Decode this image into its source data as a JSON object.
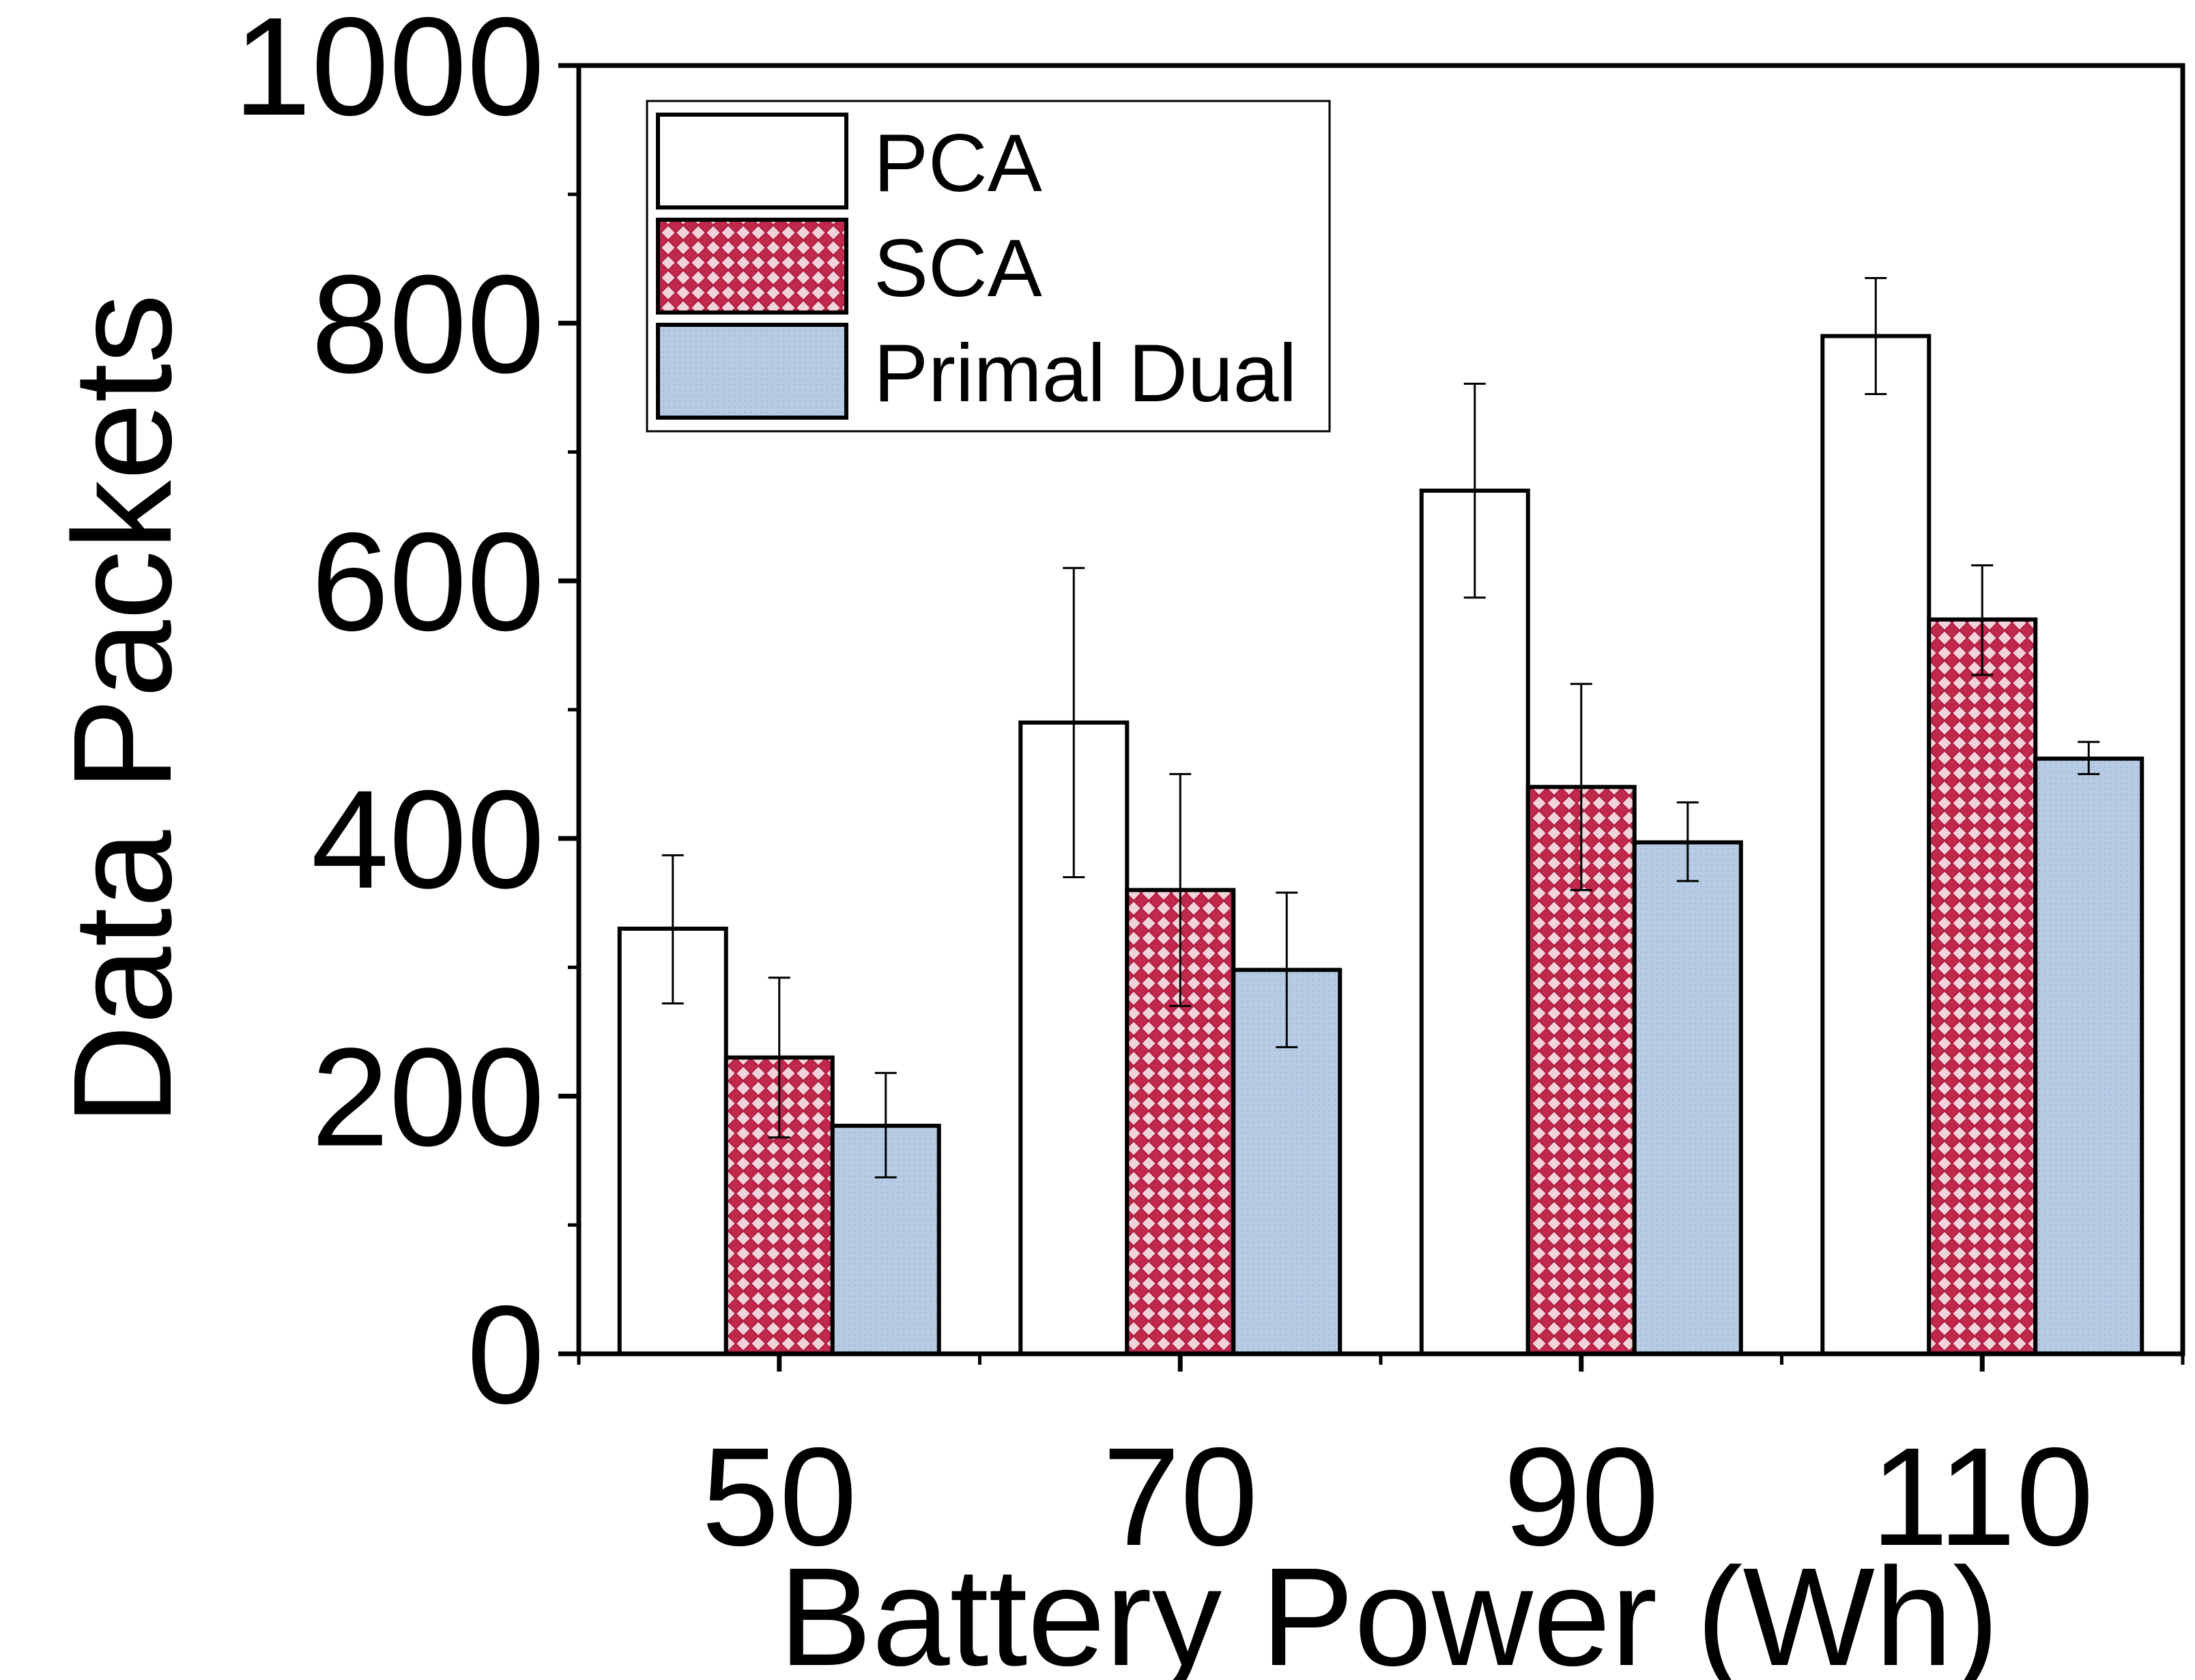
{
  "chart_data": {
    "type": "bar",
    "title": "",
    "xlabel": "Battery Power (Wh)",
    "ylabel": "Data Packets",
    "categories": [
      "50",
      "70",
      "90",
      "110"
    ],
    "ylim": [
      0,
      1000
    ],
    "yticks": [
      "0",
      "200",
      "400",
      "600",
      "800",
      "1000"
    ],
    "grid": false,
    "legend_position": "top-left",
    "series": [
      {
        "name": "PCA",
        "values": [
          330,
          490,
          670,
          790
        ],
        "error": [
          [
            272,
            387
          ],
          [
            370,
            610
          ],
          [
            587,
            753
          ],
          [
            745,
            835
          ]
        ],
        "color": "#ffffff",
        "pattern": "solid"
      },
      {
        "name": "SCA",
        "values": [
          230,
          360,
          440,
          570
        ],
        "error": [
          [
            168,
            292
          ],
          [
            270,
            450
          ],
          [
            360,
            520
          ],
          [
            527,
            612
          ]
        ],
        "color": "#c0284c",
        "pattern": "crosshatch"
      },
      {
        "name": "Primal Dual",
        "values": [
          177,
          298,
          397,
          462
        ],
        "error": [
          [
            137,
            218
          ],
          [
            238,
            358
          ],
          [
            367,
            428
          ],
          [
            450,
            475
          ]
        ],
        "color": "#b7cce4",
        "pattern": "fine-dots"
      }
    ]
  }
}
